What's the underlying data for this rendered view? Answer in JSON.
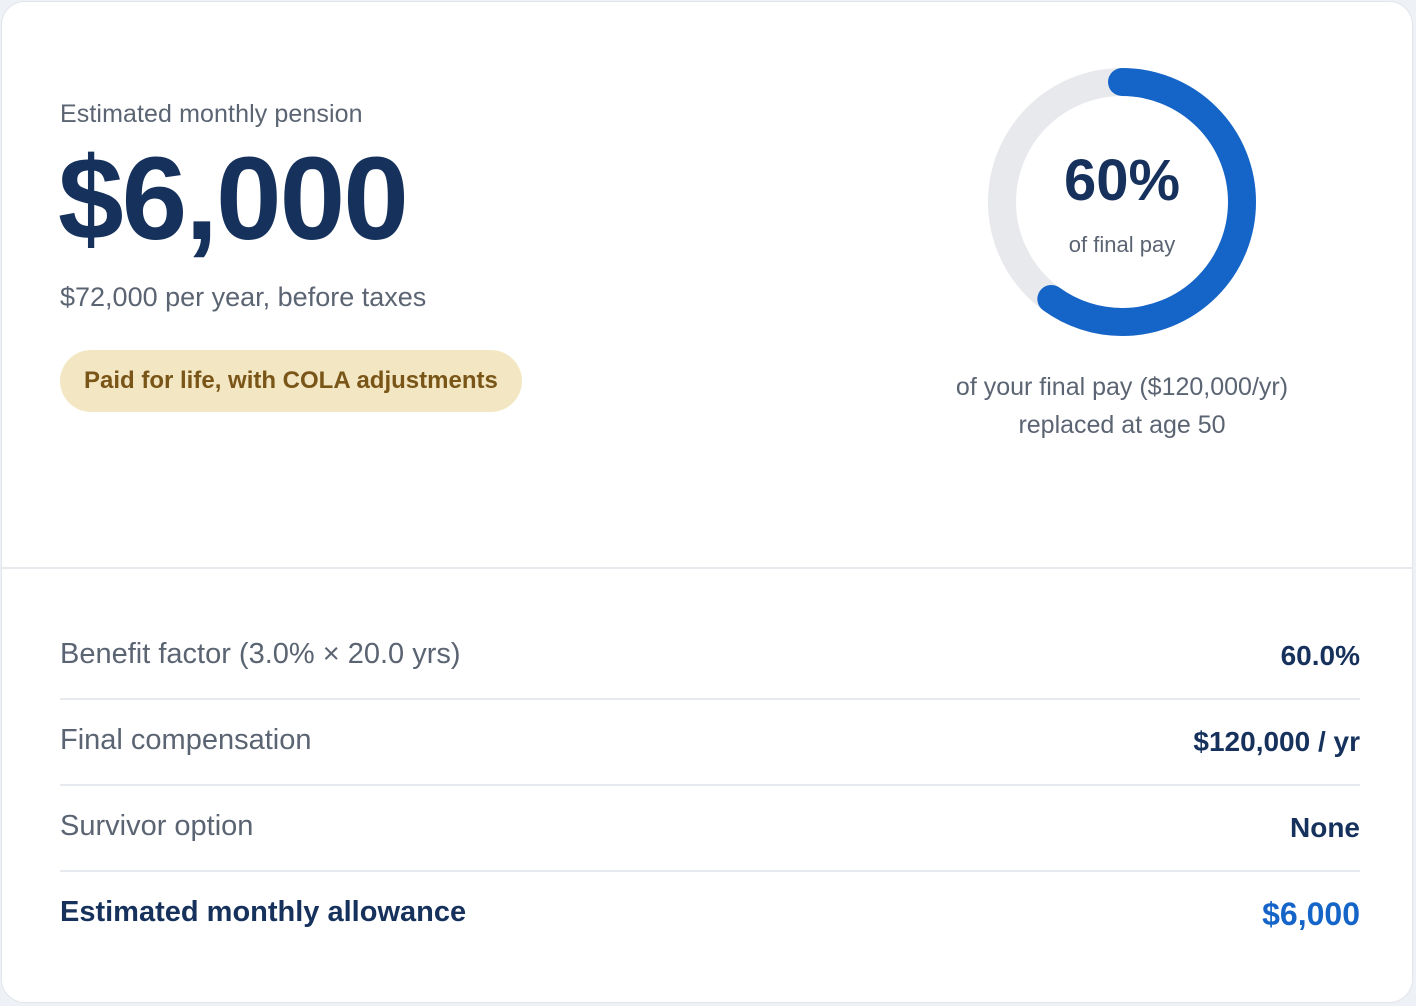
{
  "summary": {
    "label": "Estimated monthly pension",
    "amount": "$6,000",
    "annual_note": "$72,000 per year, before taxes",
    "badge": "Paid for life, with COLA adjustments"
  },
  "replacement": {
    "percent_label": "60%",
    "percent_value": 60,
    "ring_sub": "of final pay",
    "caption_line1": "of your final pay ($120,000/yr)",
    "caption_line2": "replaced at age 50"
  },
  "details": {
    "rows": [
      {
        "label": "Benefit factor (3.0% × 20.0 yrs)",
        "value": "60.0%"
      },
      {
        "label": "Final compensation",
        "value": "$120,000 / yr"
      },
      {
        "label": "Survivor option",
        "value": "None"
      },
      {
        "label": "Estimated monthly allowance",
        "value": "$6,000"
      }
    ]
  },
  "colors": {
    "primary": "#16325c",
    "accent": "#1565c8",
    "ring_track": "#e8e9ec",
    "badge_bg": "#f3e7c3",
    "badge_text": "#7a5518",
    "muted": "#5b6472"
  }
}
